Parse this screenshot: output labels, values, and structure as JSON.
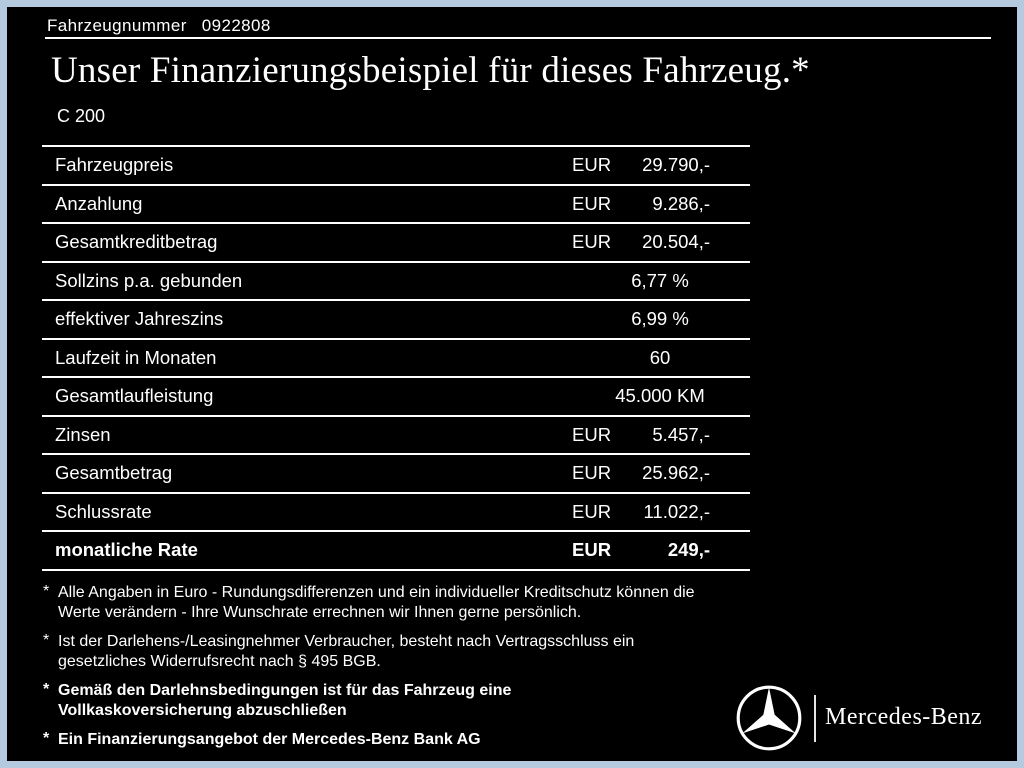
{
  "header": {
    "vehicle_number_label": "Fahrzeugnummer",
    "vehicle_number": "0922808"
  },
  "title": {
    "text": "Unser Finanzierungsbeispiel für dieses Fahrzeug.*"
  },
  "model": "C 200",
  "table": {
    "rows": [
      {
        "label": "Fahrzeugpreis",
        "currency": "EUR",
        "value": "29.790,-",
        "style": "money",
        "bold": false
      },
      {
        "label": "Anzahlung",
        "currency": "EUR",
        "value": "9.286,-",
        "style": "money",
        "bold": false
      },
      {
        "label": "Gesamtkreditbetrag",
        "currency": "EUR",
        "value": "20.504,-",
        "style": "money",
        "bold": false
      },
      {
        "label": "Sollzins p.a. gebunden",
        "currency": "",
        "value": "6,77 %",
        "style": "center",
        "bold": false
      },
      {
        "label": "effektiver Jahreszins",
        "currency": "",
        "value": "6,99 %",
        "style": "center",
        "bold": false
      },
      {
        "label": "Laufzeit in Monaten",
        "currency": "",
        "value": "60",
        "style": "center",
        "bold": false
      },
      {
        "label": "Gesamtlaufleistung",
        "currency": "",
        "value": "45.000 KM",
        "style": "center",
        "bold": false
      },
      {
        "label": "Zinsen",
        "currency": "EUR",
        "value": "5.457,-",
        "style": "money",
        "bold": false
      },
      {
        "label": "Gesamtbetrag",
        "currency": "EUR",
        "value": "25.962,-",
        "style": "money",
        "bold": false
      },
      {
        "label": "Schlussrate",
        "currency": "EUR",
        "value": "11.022,-",
        "style": "money",
        "bold": false
      },
      {
        "label": "monatliche Rate",
        "currency": "EUR",
        "value": "249,-",
        "style": "money",
        "bold": true
      }
    ]
  },
  "footnotes": [
    {
      "marker": "*",
      "bold": false,
      "lines": [
        "Alle Angaben in Euro - Rundungsdifferenzen und ein individueller Kreditschutz können die",
        "Werte verändern - Ihre Wunschrate errechnen wir Ihnen gerne persönlich."
      ]
    },
    {
      "marker": "*",
      "bold": false,
      "lines": [
        "Ist der Darlehens-/Leasingnehmer Verbraucher, besteht nach Vertragsschluss ein",
        "gesetzliches Widerrufsrecht nach § 495 BGB."
      ]
    },
    {
      "marker": "*",
      "bold": true,
      "lines": [
        "Gemäß den Darlehnsbedingungen ist für das Fahrzeug eine",
        "Vollkaskoversicherung abzuschließen"
      ]
    },
    {
      "marker": "*",
      "bold": true,
      "lines": [
        "Ein Finanzierungsangebot der Mercedes-Benz Bank AG"
      ]
    }
  ],
  "brand": {
    "wordmark": "Mercedes-Benz"
  },
  "colors": {
    "background": "#000000",
    "text": "#ffffff",
    "frame": "#b5cade"
  }
}
